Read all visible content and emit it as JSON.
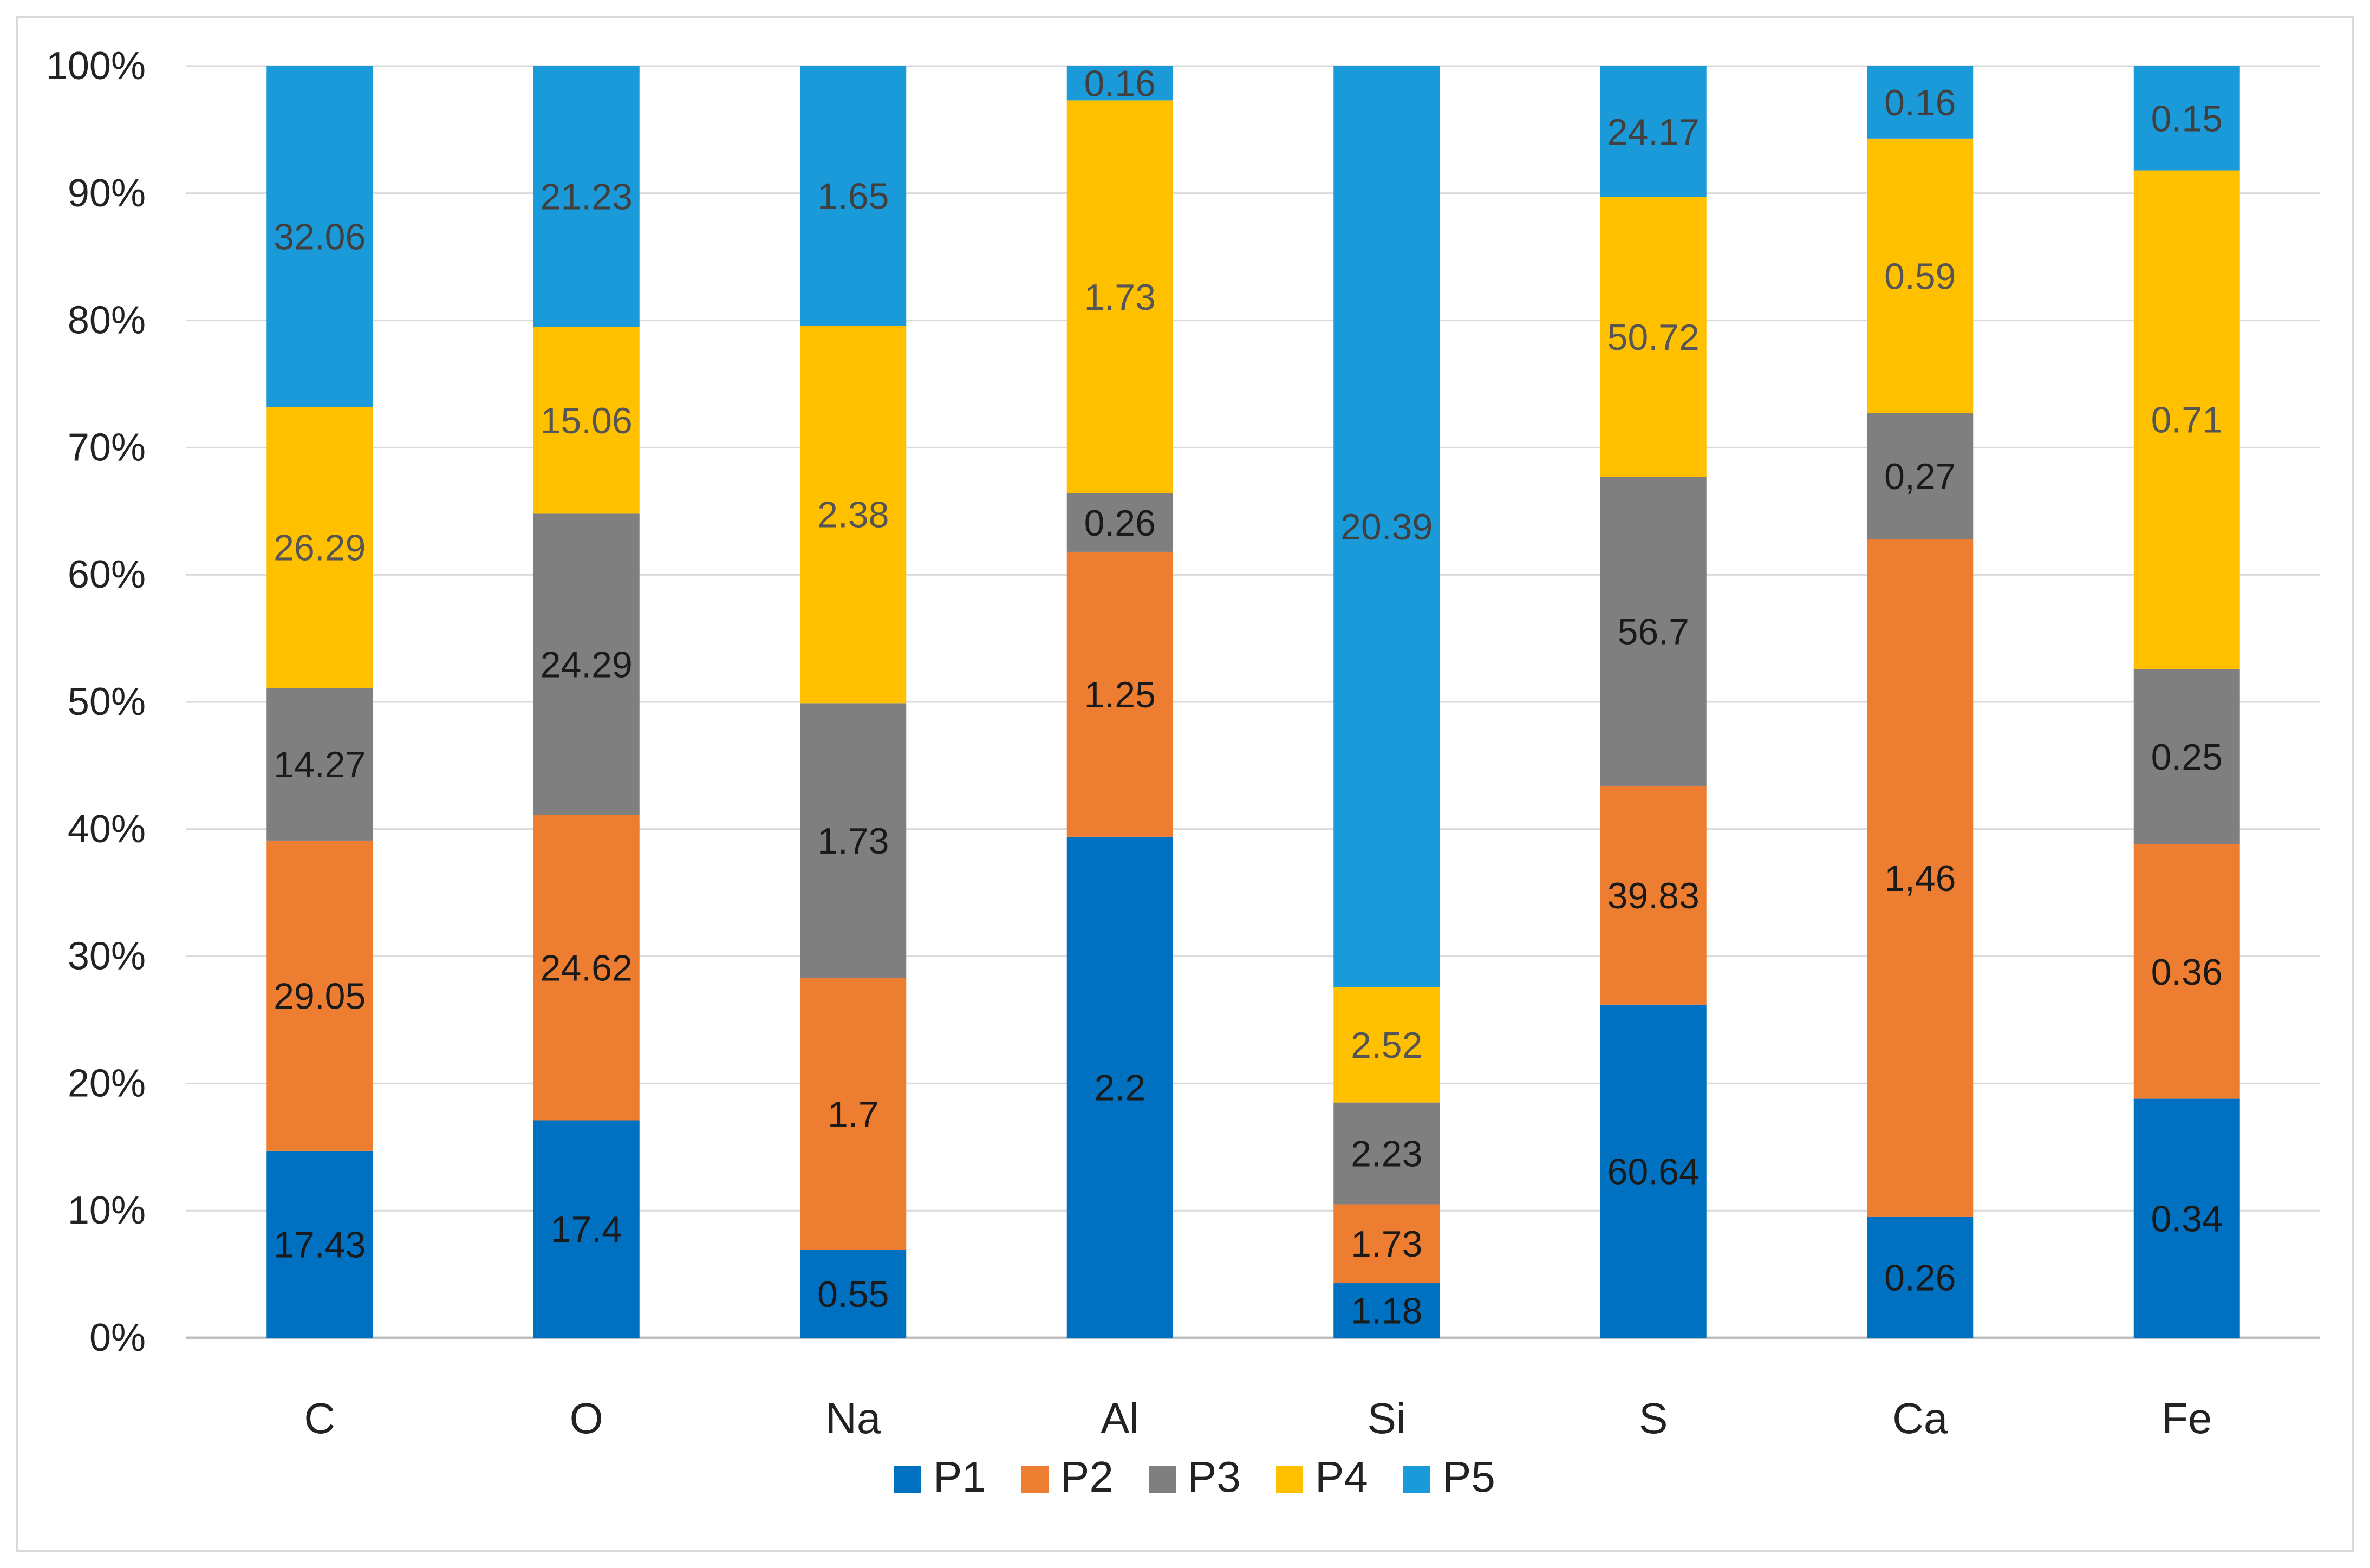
{
  "chart_data": {
    "type": "bar",
    "stacked": true,
    "normalized": true,
    "title": "",
    "xlabel": "",
    "ylabel": "",
    "ylim": [
      0,
      100
    ],
    "yticks": [
      "0%",
      "10%",
      "20%",
      "30%",
      "40%",
      "50%",
      "60%",
      "70%",
      "80%",
      "90%",
      "100%"
    ],
    "grid": true,
    "legend_position": "bottom",
    "categories": [
      "C",
      "O",
      "Na",
      "Al",
      "Si",
      "S",
      "Ca",
      "Fe"
    ],
    "series": [
      {
        "name": "P1",
        "color": "#0070C0",
        "label_color": "#1a1a1a",
        "labels": [
          "17.43",
          "17.4",
          "0.55",
          "2.2",
          "1.18",
          "60.64",
          "0.26",
          "0.34"
        ],
        "percent": [
          14.7,
          17.1,
          6.9,
          39.4,
          4.3,
          26.2,
          9.5,
          18.8
        ]
      },
      {
        "name": "P2",
        "color": "#ED7D31",
        "label_color": "#1a1a1a",
        "labels": [
          "29.05",
          "24.62",
          "1.7",
          "1.25",
          "1.73",
          "39.83",
          "1,46",
          "0.36"
        ],
        "percent": [
          24.4,
          24.0,
          21.4,
          22.4,
          6.2,
          17.2,
          53.3,
          20.0
        ]
      },
      {
        "name": "P3",
        "color": "#7F7F7F",
        "label_color": "#1a1a1a",
        "labels": [
          "14.27",
          "24.29",
          "1.73",
          "0.26",
          "2.23",
          "56.7",
          "0,27",
          "0.25"
        ],
        "percent": [
          12.0,
          23.7,
          21.6,
          4.6,
          8.0,
          24.3,
          9.9,
          13.8
        ]
      },
      {
        "name": "P4",
        "color": "#FFC000",
        "label_color": "#555555",
        "labels": [
          "26.29",
          "15.06",
          "2.38",
          "1.73",
          "2.52",
          "50.72",
          "0.59",
          "0.71"
        ],
        "percent": [
          22.1,
          14.7,
          29.7,
          30.9,
          9.1,
          22.0,
          21.6,
          39.2
        ]
      },
      {
        "name": "P5",
        "color": "#1B9AD9",
        "label_color": "#404040",
        "labels": [
          "32.06",
          "21.23",
          "1.65",
          "0.16",
          "20.39",
          "24.17",
          "0.16",
          "0.15"
        ],
        "percent": [
          26.8,
          20.5,
          20.4,
          2.7,
          72.4,
          10.3,
          5.7,
          8.2
        ]
      }
    ]
  }
}
